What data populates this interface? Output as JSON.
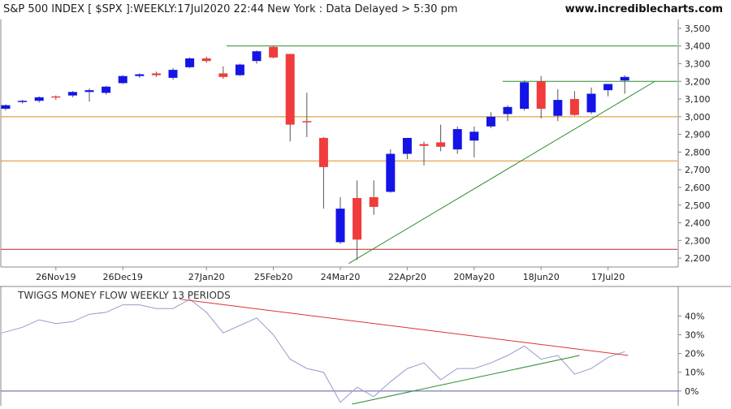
{
  "chart_data": [
    {
      "type": "candlestick",
      "title": "S&P 500 INDEX [ $SPX ]:WEEKLY:17Jul2020 22:44 New York : Data Delayed > 5:30 pm",
      "watermark": "www.incrediblecharts.com",
      "ylim": [
        2150,
        3550
      ],
      "y_ticks": [
        2200,
        2300,
        2400,
        2500,
        2600,
        2700,
        2800,
        2900,
        3000,
        3100,
        3200,
        3300,
        3400,
        3500
      ],
      "y_tick_labels": [
        "2,200",
        "2,300",
        "2,400",
        "2,500",
        "2,600",
        "2,700",
        "2,800",
        "2,900",
        "3,000",
        "3,100",
        "3,200",
        "3,300",
        "3,400",
        "3,500"
      ],
      "x_tick_labels": [
        {
          "label": "26Nov19",
          "index": 3
        },
        {
          "label": "26Dec19",
          "index": 7
        },
        {
          "label": "27Jan20",
          "index": 12
        },
        {
          "label": "25Feb20",
          "index": 16
        },
        {
          "label": "24Mar20",
          "index": 20
        },
        {
          "label": "22Apr20",
          "index": 24
        },
        {
          "label": "20May20",
          "index": 28
        },
        {
          "label": "18Jun20",
          "index": 32
        },
        {
          "label": "17Jul20",
          "index": 36
        }
      ],
      "candles": [
        {
          "o": 3045,
          "h": 3070,
          "l": 3035,
          "c": 3065
        },
        {
          "o": 3085,
          "h": 3095,
          "l": 3075,
          "c": 3090
        },
        {
          "o": 3090,
          "h": 3115,
          "l": 3080,
          "c": 3110
        },
        {
          "o": 3115,
          "h": 3120,
          "l": 3095,
          "c": 3110
        },
        {
          "o": 3120,
          "h": 3145,
          "l": 3110,
          "c": 3140
        },
        {
          "o": 3140,
          "h": 3160,
          "l": 3085,
          "c": 3150
        },
        {
          "o": 3135,
          "h": 3175,
          "l": 3125,
          "c": 3170
        },
        {
          "o": 3190,
          "h": 3235,
          "l": 3185,
          "c": 3230
        },
        {
          "o": 3230,
          "h": 3245,
          "l": 3220,
          "c": 3240
        },
        {
          "o": 3245,
          "h": 3255,
          "l": 3225,
          "c": 3235
        },
        {
          "o": 3220,
          "h": 3275,
          "l": 3210,
          "c": 3265
        },
        {
          "o": 3280,
          "h": 3335,
          "l": 3275,
          "c": 3330
        },
        {
          "o": 3330,
          "h": 3340,
          "l": 3305,
          "c": 3315
        },
        {
          "o": 3245,
          "h": 3285,
          "l": 3215,
          "c": 3225
        },
        {
          "o": 3235,
          "h": 3300,
          "l": 3230,
          "c": 3295
        },
        {
          "o": 3315,
          "h": 3375,
          "l": 3300,
          "c": 3370
        },
        {
          "o": 3395,
          "h": 3400,
          "l": 3330,
          "c": 3335
        },
        {
          "o": 3355,
          "h": 3355,
          "l": 2860,
          "c": 2955
        },
        {
          "o": 2975,
          "h": 3135,
          "l": 2885,
          "c": 2970
        },
        {
          "o": 2880,
          "h": 2885,
          "l": 2480,
          "c": 2715
        },
        {
          "o": 2290,
          "h": 2545,
          "l": 2280,
          "c": 2480
        },
        {
          "o": 2540,
          "h": 2640,
          "l": 2190,
          "c": 2305
        },
        {
          "o": 2545,
          "h": 2640,
          "l": 2445,
          "c": 2490
        },
        {
          "o": 2575,
          "h": 2815,
          "l": 2570,
          "c": 2790
        },
        {
          "o": 2790,
          "h": 2880,
          "l": 2760,
          "c": 2880
        },
        {
          "o": 2845,
          "h": 2860,
          "l": 2725,
          "c": 2835
        },
        {
          "o": 2855,
          "h": 2955,
          "l": 2805,
          "c": 2830
        },
        {
          "o": 2815,
          "h": 2945,
          "l": 2790,
          "c": 2930
        },
        {
          "o": 2865,
          "h": 2945,
          "l": 2770,
          "c": 2915
        },
        {
          "o": 2945,
          "h": 3025,
          "l": 2935,
          "c": 3000
        },
        {
          "o": 3015,
          "h": 3065,
          "l": 2975,
          "c": 3055
        },
        {
          "o": 3045,
          "h": 3205,
          "l": 3035,
          "c": 3195
        },
        {
          "o": 3200,
          "h": 3230,
          "l": 2990,
          "c": 3045
        },
        {
          "o": 3005,
          "h": 3155,
          "l": 2975,
          "c": 3095
        },
        {
          "o": 3100,
          "h": 3145,
          "l": 3005,
          "c": 3010
        },
        {
          "o": 3025,
          "h": 3165,
          "l": 3015,
          "c": 3130
        },
        {
          "o": 3150,
          "h": 3185,
          "l": 3115,
          "c": 3185
        },
        {
          "o": 3205,
          "h": 3235,
          "l": 3130,
          "c": 3225
        }
      ],
      "horizontal_lines": [
        {
          "y": 3400,
          "color": "#2e8b2e"
        },
        {
          "y": 3200,
          "color": "#2e8b2e"
        },
        {
          "y": 3000,
          "color": "#d98c1a"
        },
        {
          "y": 2750,
          "color": "#d98c1a"
        },
        {
          "y": 2250,
          "color": "#cc2222"
        }
      ],
      "trendlines": [
        {
          "from": [
            20.5,
            2170
          ],
          "to": [
            38.8,
            3200
          ],
          "color": "#2e8b2e"
        }
      ],
      "grid": false,
      "colors": {
        "up": "#1414e6",
        "down": "#f03c3c",
        "wick": "#555555",
        "axis": "#888888"
      }
    },
    {
      "type": "line",
      "title": "TWIGGS MONEY FLOW WEEKLY 13 PERIODS",
      "ylim": [
        -7,
        48
      ],
      "y_ticks": [
        0,
        10,
        20,
        30,
        40
      ],
      "y_tick_labels": [
        "0%",
        "10%",
        "20%",
        "30%",
        "40%"
      ],
      "series": [
        {
          "values": [
            31,
            34,
            38,
            36,
            37,
            41,
            42,
            46,
            46,
            44,
            44,
            49,
            42,
            31,
            35,
            39,
            30,
            17,
            12,
            10,
            -6,
            2,
            -3,
            5,
            12,
            15,
            6,
            12,
            12,
            15,
            19,
            24,
            17,
            19,
            9,
            12,
            18,
            21
          ],
          "color": "#9999cc"
        }
      ],
      "zero_line_color": "#5a5aa8",
      "trendlines": [
        {
          "from": [
            10.4,
            49
          ],
          "to": [
            37.2,
            19
          ],
          "color": "#e03030"
        },
        {
          "from": [
            20.7,
            -7
          ],
          "to": [
            34.3,
            19
          ],
          "color": "#2e8b2e"
        }
      ],
      "grid": false
    }
  ]
}
